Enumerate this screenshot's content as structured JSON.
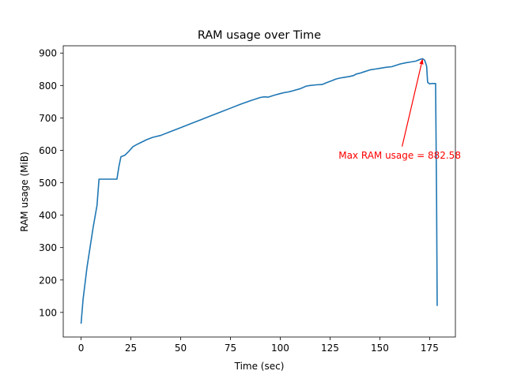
{
  "chart_data": {
    "type": "line",
    "title": "RAM usage over Time",
    "xlabel": "Time (sec)",
    "ylabel": "RAM usage (MiB)",
    "xlim": [
      -8.95,
      187.95
    ],
    "ylim": [
      24.12,
      922.48
    ],
    "xticks": [
      0,
      25,
      50,
      75,
      100,
      125,
      150,
      175
    ],
    "yticks": [
      100,
      200,
      300,
      400,
      500,
      600,
      700,
      800,
      900
    ],
    "grid": false,
    "line_color": "#1f77b4",
    "annotation": {
      "text": "Max RAM usage = 882.58",
      "color": "#ff0000",
      "point": [
        171.5,
        882.58
      ],
      "text_at": [
        160,
        585
      ]
    },
    "series": [
      {
        "x": [
          0,
          1,
          3,
          6,
          8,
          9,
          12,
          15,
          18,
          19,
          20,
          22,
          24,
          26,
          28,
          30,
          33,
          36,
          40,
          45,
          50,
          55,
          60,
          65,
          70,
          75,
          80,
          85,
          90,
          92,
          94,
          95,
          97,
          100,
          102,
          104,
          106,
          110,
          113,
          115,
          118,
          121,
          121.5,
          123,
          126,
          128,
          130,
          132,
          135,
          137,
          138,
          140,
          142,
          145,
          148,
          150,
          153,
          156,
          158,
          160,
          163,
          165,
          168,
          170,
          171.5,
          172.5,
          173.5,
          174,
          175,
          176,
          177,
          178,
          178.5,
          178.8
        ],
        "y": [
          65,
          140,
          240,
          360,
          430,
          511,
          511,
          511,
          511,
          550,
          580,
          585,
          597,
          611,
          618,
          624,
          633,
          640,
          646,
          658,
          670,
          682,
          694,
          706,
          718,
          730,
          742,
          753,
          763,
          765,
          764,
          766,
          770,
          775,
          778,
          780,
          783,
          790,
          798,
          800,
          802,
          803,
          804,
          808,
          815,
          820,
          823,
          825,
          828,
          831,
          835,
          838,
          842,
          848,
          851,
          853,
          856,
          858,
          862,
          866,
          870,
          872,
          875,
          880,
          882.58,
          878,
          860,
          810,
          805,
          806,
          806,
          806,
          450,
          120
        ]
      }
    ]
  }
}
